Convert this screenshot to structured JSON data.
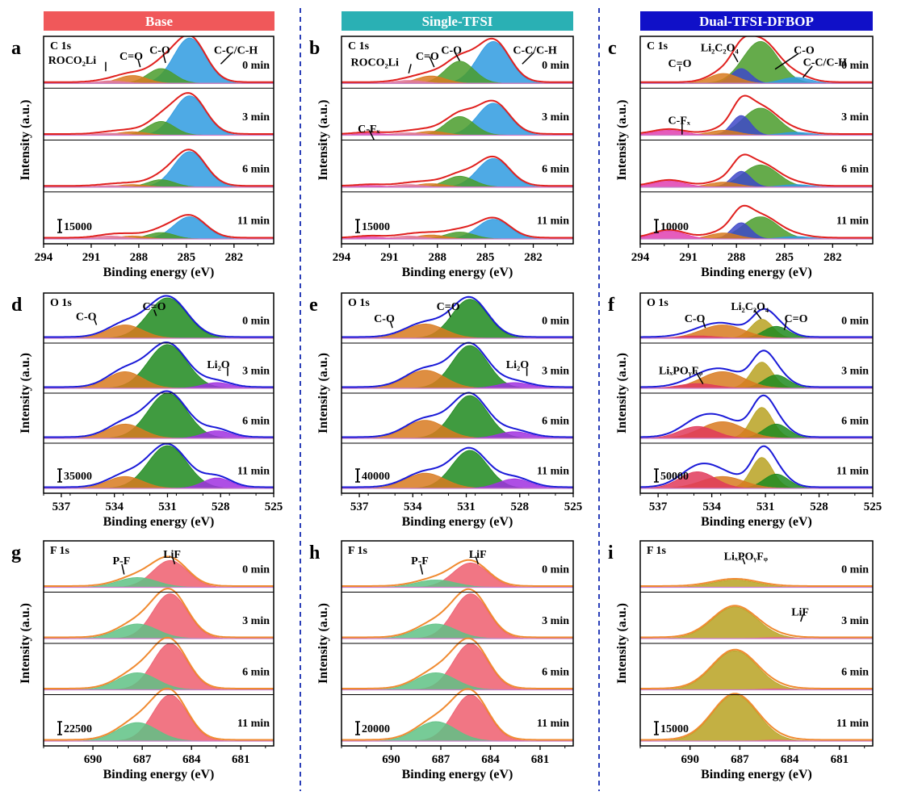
{
  "columns": [
    {
      "title": "Base",
      "color": "#f0585a"
    },
    {
      "title": "Single-TFSI",
      "color": "#2ab0b4"
    },
    {
      "title": "Dual-TFSI-DFBOP",
      "color": "#1010c8"
    }
  ],
  "colors": {
    "divider": "#2b3fb8",
    "envelope_c": "#e0201e",
    "envelope_o": "#1a1ad8",
    "envelope_f": "#f08a30",
    "blue": "#2f9be0",
    "green": "#4a9c2c",
    "darkgreen": "#1f8a1f",
    "orange": "#d87a20",
    "purple": "#a030e0",
    "pink": "#e27a9e",
    "red": "#ee5e6e",
    "lightgreen": "#5fc285",
    "olive": "#b8a222",
    "navy": "#3e48c8",
    "magenta": "#e040b0"
  },
  "chart_data": [
    {
      "panel": "a",
      "core": "C 1s",
      "type": "line",
      "xlabel": "Binding energy (eV)",
      "ylabel": "Intensity (a.u.)",
      "xlim": [
        294,
        279.5
      ],
      "xticks": [
        "294",
        "291",
        "288",
        "285",
        "282"
      ],
      "scale_bar": "15000",
      "times": [
        "0 min",
        "3 min",
        "6 min",
        "11 min"
      ],
      "components": [
        {
          "name": "C-C/C-H",
          "center": 284.8,
          "width": 1.0,
          "color": "#2f9be0",
          "amps": [
            0.92,
            0.8,
            0.72,
            0.45
          ]
        },
        {
          "name": "C-O",
          "center": 286.6,
          "width": 0.85,
          "color": "#4a9c2c",
          "amps": [
            0.3,
            0.28,
            0.15,
            0.13
          ]
        },
        {
          "name": "C=O",
          "center": 288.4,
          "width": 0.9,
          "color": "#d87a20",
          "amps": [
            0.16,
            0.07,
            0.05,
            0.06
          ]
        },
        {
          "name": "ROCO2Li",
          "center": 289.8,
          "width": 0.9,
          "color": "#e27a9e",
          "amps": [
            0.05,
            0.04,
            0.03,
            0.06
          ]
        }
      ],
      "envelope": "#e0201e",
      "labels": [
        {
          "text": "ROCO₂Li"
        },
        {
          "text": "C=O"
        },
        {
          "text": "C-O"
        },
        {
          "text": "C-C/C-H"
        }
      ]
    },
    {
      "panel": "b",
      "core": "C 1s",
      "type": "line",
      "xlabel": "Binding energy (eV)",
      "ylabel": "Intensity (a.u.)",
      "xlim": [
        294,
        279.5
      ],
      "xticks": [
        "294",
        "291",
        "288",
        "285",
        "282"
      ],
      "scale_bar": "15000",
      "times": [
        "0 min",
        "3 min",
        "6 min",
        "11 min"
      ],
      "components": [
        {
          "name": "C-C/C-H",
          "center": 284.5,
          "width": 1.0,
          "color": "#2f9be0",
          "amps": [
            0.85,
            0.65,
            0.58,
            0.4
          ]
        },
        {
          "name": "C-O",
          "center": 286.6,
          "width": 0.9,
          "color": "#4a9c2c",
          "amps": [
            0.45,
            0.38,
            0.22,
            0.14
          ]
        },
        {
          "name": "C=O",
          "center": 288.4,
          "width": 0.9,
          "color": "#d87a20",
          "amps": [
            0.15,
            0.08,
            0.07,
            0.08
          ]
        },
        {
          "name": "ROCO2Li",
          "center": 289.8,
          "width": 0.9,
          "color": "#e27a9e",
          "amps": [
            0.06,
            0.05,
            0.05,
            0.06
          ]
        },
        {
          "name": "C-Fx",
          "center": 292.2,
          "width": 0.9,
          "color": "#e040b0",
          "amps": [
            0.0,
            0.04,
            0.03,
            0.04
          ]
        }
      ],
      "envelope": "#e0201e",
      "labels": [
        {
          "text": "ROCO₂Li"
        },
        {
          "text": "C=O"
        },
        {
          "text": "C-O"
        },
        {
          "text": "C-C/C-H"
        },
        {
          "text": "C-Fₓ"
        }
      ]
    },
    {
      "panel": "c",
      "core": "C 1s",
      "type": "line",
      "xlabel": "Binding energy (eV)",
      "ylabel": "Intensity (a.u.)",
      "xlim": [
        294,
        279.5
      ],
      "xticks": [
        "294",
        "291",
        "288",
        "285",
        "282"
      ],
      "scale_bar": "10000",
      "times": [
        "0 min",
        "3 min",
        "6 min",
        "11 min"
      ],
      "components": [
        {
          "name": "C-O",
          "center": 286.5,
          "width": 1.1,
          "color": "#4a9c2c",
          "amps": [
            0.85,
            0.55,
            0.45,
            0.45
          ]
        },
        {
          "name": "Li2C2O4",
          "center": 287.7,
          "width": 0.6,
          "color": "#3e48c8",
          "amps": [
            0.3,
            0.4,
            0.32,
            0.33
          ]
        },
        {
          "name": "C=O",
          "center": 288.8,
          "width": 0.9,
          "color": "#d87a20",
          "amps": [
            0.2,
            0.1,
            0.1,
            0.12
          ]
        },
        {
          "name": "C-C/C-H",
          "center": 284.3,
          "width": 0.9,
          "color": "#2f9be0",
          "amps": [
            0.12,
            0.06,
            0.05,
            0.05
          ]
        },
        {
          "name": "C-Fx",
          "center": 292.2,
          "width": 1.0,
          "color": "#e040b0",
          "amps": [
            0.0,
            0.1,
            0.12,
            0.16
          ]
        }
      ],
      "envelope": "#e0201e",
      "labels": [
        {
          "text": "C=O"
        },
        {
          "text": "Li₂C₂O₄"
        },
        {
          "text": "C-O"
        },
        {
          "text": "C-C/C-H"
        },
        {
          "text": "C-Fₓ"
        }
      ]
    },
    {
      "panel": "d",
      "core": "O 1s",
      "type": "line",
      "xlabel": "Binding energy (eV)",
      "ylabel": "Intensity (a.u.)",
      "xlim": [
        538,
        525
      ],
      "xticks": [
        "537",
        "534",
        "531",
        "528",
        "525"
      ],
      "scale_bar": "35000",
      "times": [
        "0 min",
        "3 min",
        "6 min",
        "11 min"
      ],
      "components": [
        {
          "name": "C=O",
          "center": 531.0,
          "width": 1.1,
          "color": "#1f8a1f",
          "amps": [
            0.85,
            0.92,
            0.95,
            0.9
          ]
        },
        {
          "name": "C-O",
          "center": 533.4,
          "width": 1.0,
          "color": "#d87a20",
          "amps": [
            0.28,
            0.35,
            0.3,
            0.25
          ]
        },
        {
          "name": "Li2O",
          "center": 528.2,
          "width": 0.8,
          "color": "#a030e0",
          "amps": [
            0.0,
            0.12,
            0.16,
            0.22
          ]
        }
      ],
      "envelope": "#1a1ad8",
      "labels": [
        {
          "text": "C-O"
        },
        {
          "text": "C=O"
        },
        {
          "text": "Li₂O"
        }
      ]
    },
    {
      "panel": "e",
      "core": "O 1s",
      "type": "line",
      "xlabel": "Binding energy (eV)",
      "ylabel": "Intensity (a.u.)",
      "xlim": [
        538,
        525
      ],
      "xticks": [
        "537",
        "534",
        "531",
        "528",
        "525"
      ],
      "scale_bar": "40000",
      "times": [
        "0 min",
        "3 min",
        "6 min",
        "11 min"
      ],
      "components": [
        {
          "name": "C=O",
          "center": 530.8,
          "width": 1.0,
          "color": "#1f8a1f",
          "amps": [
            0.82,
            0.9,
            0.9,
            0.8
          ]
        },
        {
          "name": "C-O",
          "center": 533.3,
          "width": 1.1,
          "color": "#d87a20",
          "amps": [
            0.3,
            0.38,
            0.38,
            0.32
          ]
        },
        {
          "name": "Li2O",
          "center": 528.3,
          "width": 0.9,
          "color": "#a030e0",
          "amps": [
            0.0,
            0.12,
            0.14,
            0.2
          ]
        }
      ],
      "envelope": "#1a1ad8",
      "labels": [
        {
          "text": "C-O"
        },
        {
          "text": "C=O"
        },
        {
          "text": "Li₂O"
        }
      ]
    },
    {
      "panel": "f",
      "core": "O 1s",
      "type": "line",
      "xlabel": "Binding energy (eV)",
      "ylabel": "Intensity (a.u.)",
      "xlim": [
        538,
        525
      ],
      "xticks": [
        "537",
        "534",
        "531",
        "528",
        "525"
      ],
      "scale_bar": "50000",
      "times": [
        "0 min",
        "3 min",
        "6 min",
        "11 min"
      ],
      "components": [
        {
          "name": "Li2C2O4",
          "center": 531.2,
          "width": 0.6,
          "color": "#b8a222",
          "amps": [
            0.4,
            0.55,
            0.65,
            0.65
          ]
        },
        {
          "name": "C=O",
          "center": 530.4,
          "width": 0.7,
          "color": "#1f8a1f",
          "amps": [
            0.25,
            0.28,
            0.3,
            0.3
          ]
        },
        {
          "name": "C-O",
          "center": 533.4,
          "width": 1.2,
          "color": "#d87a20",
          "amps": [
            0.28,
            0.35,
            0.35,
            0.25
          ]
        },
        {
          "name": "LixPOyFz",
          "center": 534.8,
          "width": 1.0,
          "color": "#e03a5a",
          "amps": [
            0.05,
            0.1,
            0.25,
            0.35
          ]
        }
      ],
      "envelope": "#1a1ad8",
      "labels": [
        {
          "text": "C-O"
        },
        {
          "text": "Li₂C₂O₄"
        },
        {
          "text": "C=O"
        },
        {
          "text": "LiₓPOᵧFᵩ"
        }
      ]
    },
    {
      "panel": "g",
      "core": "F 1s",
      "type": "line",
      "xlabel": "Binding energy (eV)",
      "ylabel": "Intensity (a.u.)",
      "xlim": [
        693,
        679
      ],
      "xticks": [
        "690",
        "687",
        "684",
        "681"
      ],
      "scale_bar": "22500",
      "times": [
        "0 min",
        "3 min",
        "6 min",
        "11 min"
      ],
      "components": [
        {
          "name": "LiF",
          "center": 685.3,
          "width": 1.05,
          "color": "#ee5e6e",
          "amps": [
            0.55,
            0.92,
            0.95,
            0.95
          ]
        },
        {
          "name": "P-F",
          "center": 687.3,
          "width": 1.2,
          "color": "#5fc285",
          "amps": [
            0.2,
            0.3,
            0.35,
            0.38
          ]
        }
      ],
      "envelope": "#f08a30",
      "labels": [
        {
          "text": "P-F"
        },
        {
          "text": "LiF"
        }
      ]
    },
    {
      "panel": "h",
      "core": "F 1s",
      "type": "line",
      "xlabel": "Binding energy (eV)",
      "ylabel": "Intensity (a.u.)",
      "xlim": [
        693,
        679
      ],
      "xticks": [
        "690",
        "687",
        "684",
        "681"
      ],
      "scale_bar": "20000",
      "times": [
        "0 min",
        "3 min",
        "6 min",
        "11 min"
      ],
      "components": [
        {
          "name": "LiF",
          "center": 685.2,
          "width": 1.05,
          "color": "#ee5e6e",
          "amps": [
            0.5,
            0.92,
            0.95,
            0.95
          ]
        },
        {
          "name": "P-F",
          "center": 687.3,
          "width": 1.2,
          "color": "#5fc285",
          "amps": [
            0.15,
            0.3,
            0.35,
            0.4
          ]
        }
      ],
      "envelope": "#f08a30",
      "labels": [
        {
          "text": "P-F"
        },
        {
          "text": "LiF"
        }
      ]
    },
    {
      "panel": "i",
      "core": "F 1s",
      "type": "line",
      "xlabel": "Binding energy (eV)",
      "ylabel": "Intensity (a.u.)",
      "xlim": [
        693,
        679
      ],
      "xticks": [
        "690",
        "687",
        "684",
        "681"
      ],
      "scale_bar": "15000",
      "times": [
        "0 min",
        "3 min",
        "6 min",
        "11 min"
      ],
      "components": [
        {
          "name": "LixPOyFz",
          "center": 687.3,
          "width": 1.35,
          "color": "#b8a222",
          "amps": [
            0.15,
            0.65,
            0.8,
            0.95
          ]
        },
        {
          "name": "LiF",
          "center": 684.8,
          "width": 0.9,
          "color": "#ee5e6e",
          "amps": [
            0.0,
            0.02,
            0.02,
            0.02
          ]
        }
      ],
      "envelope": "#f08a30",
      "labels": [
        {
          "text": "LiₓPOᵧFᵩ"
        },
        {
          "text": "LiF"
        }
      ]
    }
  ]
}
